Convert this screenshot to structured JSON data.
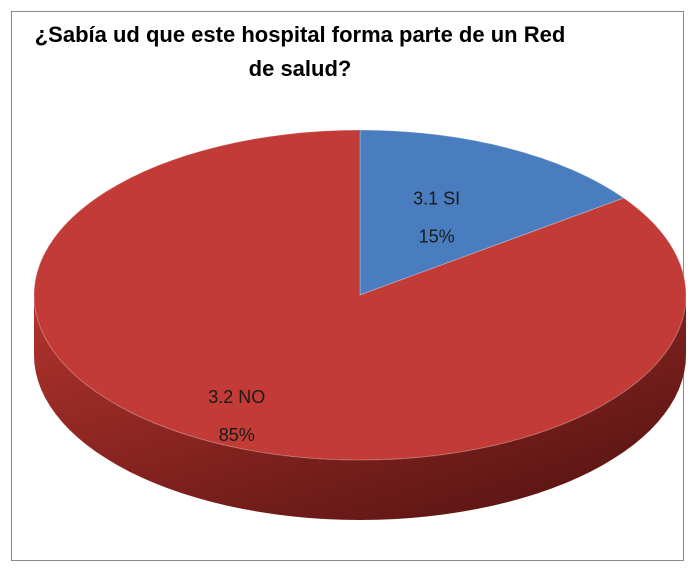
{
  "chart_data": {
    "type": "pie",
    "title": "¿Sabía ud que este hospital forma parte de un Red de salud?",
    "categories": [
      "3.1 SI",
      "3.2 NO"
    ],
    "values": [
      15,
      85
    ],
    "value_labels": [
      "15%",
      "85%"
    ],
    "colors": [
      "#4a7dbf",
      "#c23b36"
    ]
  }
}
